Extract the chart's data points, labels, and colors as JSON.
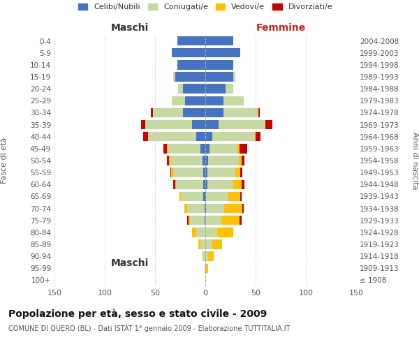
{
  "age_groups": [
    "100+",
    "95-99",
    "90-94",
    "85-89",
    "80-84",
    "75-79",
    "70-74",
    "65-69",
    "60-64",
    "55-59",
    "50-54",
    "45-49",
    "40-44",
    "35-39",
    "30-34",
    "25-29",
    "20-24",
    "15-19",
    "10-14",
    "5-9",
    "0-4"
  ],
  "birth_years": [
    "≤ 1908",
    "1909-1913",
    "1914-1918",
    "1919-1923",
    "1924-1928",
    "1929-1933",
    "1934-1938",
    "1939-1943",
    "1944-1948",
    "1949-1953",
    "1954-1958",
    "1959-1963",
    "1964-1968",
    "1969-1973",
    "1974-1978",
    "1979-1983",
    "1984-1988",
    "1989-1993",
    "1994-1998",
    "1999-2003",
    "2004-2008"
  ],
  "male": {
    "celibi": [
      0,
      0,
      0,
      0,
      0,
      1,
      1,
      2,
      2,
      2,
      3,
      5,
      9,
      13,
      22,
      20,
      22,
      30,
      28,
      33,
      28
    ],
    "coniugati": [
      0,
      1,
      2,
      5,
      9,
      14,
      17,
      22,
      27,
      30,
      32,
      32,
      48,
      47,
      30,
      13,
      5,
      2,
      0,
      0,
      0
    ],
    "vedovi": [
      0,
      0,
      1,
      2,
      4,
      2,
      3,
      2,
      1,
      2,
      1,
      1,
      0,
      0,
      0,
      0,
      0,
      0,
      0,
      0,
      0
    ],
    "divorziati": [
      0,
      0,
      0,
      0,
      0,
      1,
      0,
      0,
      2,
      1,
      2,
      4,
      5,
      4,
      2,
      0,
      0,
      0,
      0,
      0,
      0
    ]
  },
  "female": {
    "nubili": [
      0,
      0,
      0,
      0,
      0,
      0,
      1,
      1,
      2,
      2,
      3,
      4,
      7,
      13,
      18,
      18,
      20,
      28,
      28,
      35,
      28
    ],
    "coniugate": [
      0,
      1,
      3,
      7,
      12,
      16,
      18,
      22,
      26,
      28,
      30,
      28,
      42,
      47,
      35,
      20,
      8,
      2,
      0,
      0,
      0
    ],
    "vedove": [
      0,
      2,
      5,
      10,
      16,
      18,
      18,
      12,
      8,
      5,
      3,
      2,
      1,
      0,
      0,
      0,
      0,
      0,
      0,
      0,
      0
    ],
    "divorziate": [
      0,
      0,
      0,
      0,
      0,
      2,
      1,
      1,
      3,
      2,
      3,
      8,
      5,
      7,
      1,
      0,
      0,
      0,
      0,
      0,
      0
    ]
  },
  "colors": {
    "celibi": "#4472c4",
    "coniugati": "#c5d9a0",
    "vedovi": "#ffc000",
    "divorziati": "#cc0000"
  },
  "title": "Popolazione per età, sesso e stato civile - 2009",
  "subtitle": "COMUNE DI QUERO (BL) - Dati ISTAT 1° gennaio 2009 - Elaborazione TUTTITALIA.IT",
  "xlabel_left": "Maschi",
  "xlabel_right": "Femmine",
  "ylabel_left": "Fasce di età",
  "ylabel_right": "Anni di nascita",
  "xlim": 150,
  "legend_labels": [
    "Celibi/Nubili",
    "Coniugati/e",
    "Vedovi/e",
    "Divorziati/e"
  ],
  "background_color": "#ffffff",
  "grid_color": "#cccccc"
}
